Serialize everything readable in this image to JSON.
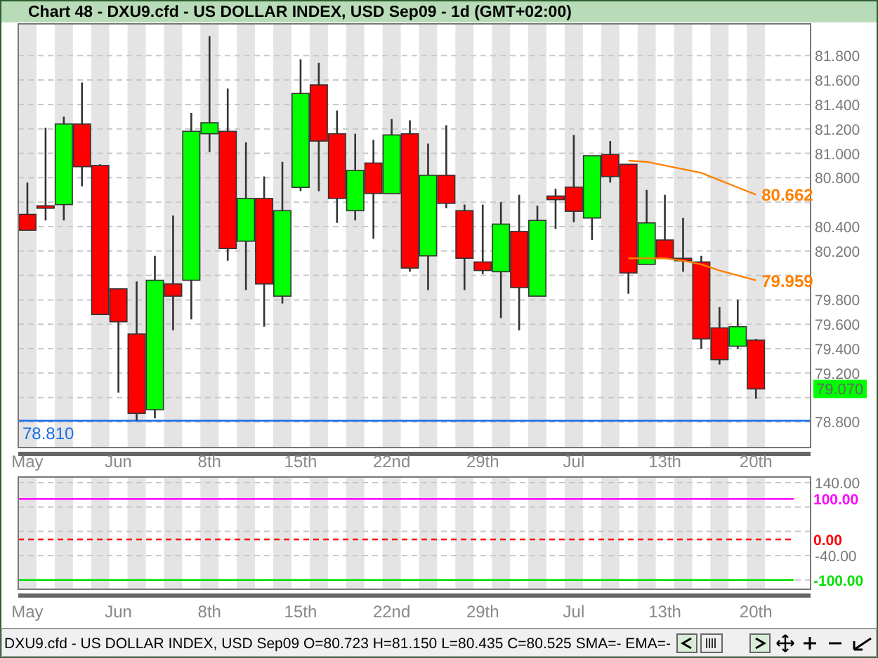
{
  "chart_data": [
    {
      "type": "candlestick",
      "title": "Chart 48 - DXU9.cfd - US DOLLAR INDEX, USD Sep09 - 1d (GMT+02:00)",
      "categories": [
        "May",
        null,
        null,
        null,
        null,
        "Jun",
        null,
        null,
        null,
        null,
        "8th",
        null,
        null,
        null,
        null,
        "15th",
        null,
        null,
        null,
        null,
        "22nd",
        null,
        null,
        null,
        null,
        "29th",
        null,
        null,
        null,
        null,
        "Jul",
        null,
        null,
        null,
        null,
        "13th",
        null,
        null,
        null,
        null,
        "20th"
      ],
      "ohlc": [
        [
          80.5,
          80.76,
          80.37,
          80.37
        ],
        [
          80.57,
          81.21,
          80.45,
          80.55
        ],
        [
          80.58,
          81.3,
          80.45,
          81.24
        ],
        [
          81.24,
          81.58,
          80.73,
          80.89
        ],
        [
          80.9,
          80.91,
          79.68,
          79.68
        ],
        [
          79.89,
          79.89,
          79.04,
          79.62
        ],
        [
          79.52,
          79.95,
          78.81,
          78.87
        ],
        [
          78.9,
          80.16,
          78.83,
          79.96
        ],
        [
          79.93,
          80.49,
          79.55,
          79.83
        ],
        [
          79.96,
          81.33,
          79.64,
          81.18
        ],
        [
          81.16,
          81.96,
          81.01,
          81.25
        ],
        [
          81.18,
          81.53,
          80.12,
          80.22
        ],
        [
          80.28,
          81.09,
          79.88,
          80.63
        ],
        [
          80.63,
          80.81,
          79.58,
          79.93
        ],
        [
          79.83,
          80.93,
          79.77,
          80.53
        ],
        [
          80.72,
          81.77,
          80.69,
          81.49
        ],
        [
          81.56,
          81.74,
          80.69,
          81.1
        ],
        [
          81.16,
          81.35,
          80.43,
          80.63
        ],
        [
          80.53,
          81.16,
          80.45,
          80.86
        ],
        [
          80.92,
          81.11,
          80.3,
          80.67
        ],
        [
          80.67,
          81.28,
          80.67,
          81.15
        ],
        [
          81.16,
          81.27,
          80.03,
          80.06
        ],
        [
          80.16,
          81.08,
          79.88,
          80.82
        ],
        [
          80.82,
          81.23,
          80.55,
          80.59
        ],
        [
          80.53,
          80.58,
          79.88,
          80.14
        ],
        [
          80.11,
          80.58,
          80.01,
          80.04
        ],
        [
          80.03,
          80.6,
          79.65,
          80.42
        ],
        [
          80.36,
          80.66,
          79.55,
          79.9
        ],
        [
          79.83,
          80.57,
          79.83,
          80.45
        ],
        [
          80.65,
          80.71,
          80.38,
          80.62
        ],
        [
          80.723,
          81.15,
          80.435,
          80.525
        ],
        [
          80.47,
          80.98,
          80.29,
          80.98
        ],
        [
          80.99,
          81.1,
          80.76,
          80.81
        ],
        [
          80.91,
          80.91,
          79.85,
          80.02
        ],
        [
          80.09,
          80.7,
          80.09,
          80.43
        ],
        [
          80.29,
          80.66,
          80.14,
          80.14
        ],
        [
          80.14,
          80.47,
          80.03,
          80.12
        ],
        [
          80.11,
          80.16,
          79.4,
          79.48
        ],
        [
          79.57,
          79.74,
          79.27,
          79.31
        ],
        [
          79.42,
          79.8,
          79.4,
          79.58
        ],
        [
          79.47,
          79.48,
          78.99,
          79.07
        ]
      ],
      "value_labels": [
        null,
        null,
        null,
        null,
        null,
        null,
        null,
        null,
        null,
        null,
        null,
        null,
        null,
        null,
        null,
        null,
        null,
        null,
        null,
        null,
        null,
        null,
        null,
        null,
        null,
        null,
        null,
        null,
        null,
        null,
        null,
        null,
        null,
        null,
        null,
        null,
        null,
        null,
        null,
        null,
        "79.070"
      ],
      "colors": [
        "#ff0000",
        "#ff0000",
        "#00ff00",
        "#ff0000",
        "#ff0000",
        "#ff0000",
        "#ff0000",
        "#00ff00",
        "#ff0000",
        "#00ff00",
        "#00ff00",
        "#ff0000",
        "#00ff00",
        "#ff0000",
        "#00ff00",
        "#00ff00",
        "#ff0000",
        "#ff0000",
        "#00ff00",
        "#ff0000",
        "#00ff00",
        "#ff0000",
        "#00ff00",
        "#ff0000",
        "#ff0000",
        "#ff0000",
        "#00ff00",
        "#ff0000",
        "#00ff00",
        "#ff0000",
        "#ff0000",
        "#00ff00",
        "#ff0000",
        "#ff0000",
        "#00ff00",
        "#ff0000",
        "#ff0000",
        "#ff0000",
        "#ff0000",
        "#00ff00",
        "#ff0000"
      ],
      "series": [
        {
          "type": "line",
          "color": "#ff8000",
          "values": [
            null,
            null,
            null,
            null,
            null,
            null,
            null,
            null,
            null,
            null,
            null,
            null,
            null,
            null,
            null,
            null,
            null,
            null,
            null,
            null,
            null,
            null,
            null,
            null,
            null,
            null,
            null,
            null,
            null,
            null,
            null,
            null,
            null,
            80.94,
            80.93,
            80.9,
            80.87,
            80.84,
            80.78,
            80.72,
            80.662
          ],
          "value_labels": [
            null,
            null,
            null,
            null,
            null,
            null,
            null,
            null,
            null,
            null,
            null,
            null,
            null,
            null,
            null,
            null,
            null,
            null,
            null,
            null,
            null,
            null,
            null,
            null,
            null,
            null,
            null,
            null,
            null,
            null,
            null,
            null,
            null,
            null,
            null,
            null,
            null,
            null,
            null,
            null,
            "80.662"
          ]
        },
        {
          "type": "line",
          "color": "#ff8000",
          "values": [
            null,
            null,
            null,
            null,
            null,
            null,
            null,
            null,
            null,
            null,
            null,
            null,
            null,
            null,
            null,
            null,
            null,
            null,
            null,
            null,
            null,
            null,
            null,
            null,
            null,
            null,
            null,
            null,
            null,
            null,
            null,
            null,
            null,
            80.14,
            80.14,
            80.14,
            80.12,
            80.09,
            80.04,
            80.0,
            79.959
          ],
          "value_labels": [
            null,
            null,
            null,
            null,
            null,
            null,
            null,
            null,
            null,
            null,
            null,
            null,
            null,
            null,
            null,
            null,
            null,
            null,
            null,
            null,
            null,
            null,
            null,
            null,
            null,
            null,
            null,
            null,
            null,
            null,
            null,
            null,
            null,
            null,
            null,
            null,
            null,
            null,
            null,
            null,
            "79.959"
          ]
        }
      ],
      "ylim": [
        78.59,
        82.06
      ],
      "yticks": [
        {
          "value": 78.8,
          "label": "78.800"
        },
        {
          "value": 79.0,
          "label": null
        },
        {
          "value": 79.2,
          "label": "79.200"
        },
        {
          "value": 79.4,
          "label": "79.400"
        },
        {
          "value": 79.6,
          "label": "79.600"
        },
        {
          "value": 79.8,
          "label": "79.800"
        },
        {
          "value": 80.0,
          "label": null
        },
        {
          "value": 80.2,
          "label": "80.200"
        },
        {
          "value": 80.4,
          "label": "80.400"
        },
        {
          "value": 80.6,
          "label": null
        },
        {
          "value": 80.8,
          "label": "80.800"
        },
        {
          "value": 81.0,
          "label": "81.000"
        },
        {
          "value": 81.2,
          "label": "81.200"
        },
        {
          "value": 81.4,
          "label": "81.400"
        },
        {
          "value": 81.6,
          "label": "81.600"
        },
        {
          "value": 81.8,
          "label": "81.800"
        }
      ],
      "grid": "y",
      "ref_lines": [
        {
          "axis": "y",
          "value": 78.81,
          "label": "78.810",
          "color": "#1a6ee6"
        }
      ],
      "annotations": [
        "DXU9.cfd - US DOLLAR INDEX, USD Sep09 O=80.723 H=81.150 L=80.435 C=80.525  SMA=- EMA=-"
      ]
    },
    {
      "type": "line",
      "categories": [
        "May",
        null,
        null,
        null,
        null,
        "Jun",
        null,
        null,
        null,
        null,
        "8th",
        null,
        null,
        null,
        null,
        "15th",
        null,
        null,
        null,
        null,
        "22nd",
        null,
        null,
        null,
        null,
        "29th",
        null,
        null,
        null,
        null,
        "Jul",
        null,
        null,
        null,
        null,
        "13th",
        null,
        null,
        null,
        null,
        "20th"
      ],
      "ylim": [
        -123,
        154
      ],
      "yticks": [
        {
          "value": 140,
          "label": "140.00"
        },
        {
          "value": 80,
          "label": null
        },
        {
          "value": 20,
          "label": null
        },
        {
          "value": -40,
          "label": "-40.00"
        },
        {
          "value": -100,
          "label": null
        }
      ],
      "grid": "y",
      "ref_lines": [
        {
          "axis": "y",
          "value": 100,
          "label": "100.00",
          "color": "#ff00ff"
        },
        {
          "axis": "y",
          "value": 0,
          "label": "0.00",
          "color": "#ff0000",
          "line_style": "dashed"
        },
        {
          "axis": "y",
          "value": -100,
          "label": "-100.00",
          "color": "#00e000"
        }
      ]
    }
  ]
}
